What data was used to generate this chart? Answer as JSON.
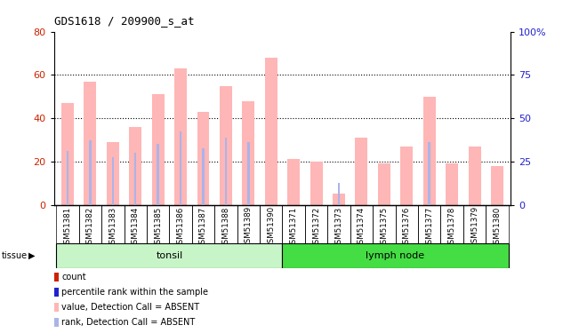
{
  "title": "GDS1618 / 209900_s_at",
  "samples": [
    "GSM51381",
    "GSM51382",
    "GSM51383",
    "GSM51384",
    "GSM51385",
    "GSM51386",
    "GSM51387",
    "GSM51388",
    "GSM51389",
    "GSM51390",
    "GSM51371",
    "GSM51372",
    "GSM51373",
    "GSM51374",
    "GSM51375",
    "GSM51376",
    "GSM51377",
    "GSM51378",
    "GSM51379",
    "GSM51380"
  ],
  "value_absent": [
    47,
    57,
    29,
    36,
    51,
    63,
    43,
    55,
    48,
    68,
    21,
    20,
    5,
    31,
    19,
    27,
    50,
    19,
    27,
    18
  ],
  "rank_absent": [
    25,
    30,
    22,
    24,
    28,
    34,
    26,
    31,
    29,
    0,
    0,
    0,
    10,
    0,
    0,
    0,
    29,
    0,
    0,
    0
  ],
  "groups": [
    {
      "label": "tonsil",
      "start": 0,
      "end": 10,
      "color": "#c8f5c8"
    },
    {
      "label": "lymph node",
      "start": 10,
      "end": 20,
      "color": "#44dd44"
    }
  ],
  "ylim_left": [
    0,
    80
  ],
  "ylim_right": [
    0,
    100
  ],
  "yticks_left": [
    0,
    20,
    40,
    60,
    80
  ],
  "yticks_right": [
    0,
    25,
    50,
    75,
    100
  ],
  "ytick_labels_right": [
    "0",
    "25",
    "50",
    "75",
    "100%"
  ],
  "bar_color_absent": "#ffb6b6",
  "rank_bar_color_absent": "#aab4e8",
  "count_color": "#cc2200",
  "rank_color": "#2222cc",
  "bg_color": "#cccccc",
  "plot_bg": "#ffffff",
  "legend_items": [
    {
      "color": "#cc2200",
      "label": "count"
    },
    {
      "color": "#2222cc",
      "label": "percentile rank within the sample"
    },
    {
      "color": "#ffb6b6",
      "label": "value, Detection Call = ABSENT"
    },
    {
      "color": "#aab4e8",
      "label": "rank, Detection Call = ABSENT"
    }
  ]
}
